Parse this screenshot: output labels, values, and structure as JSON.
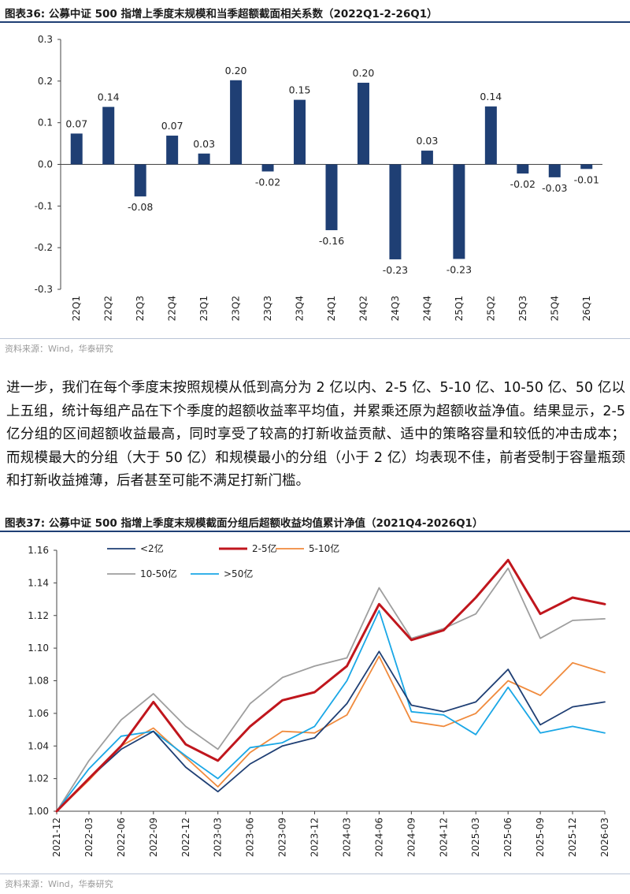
{
  "figure1": {
    "title": "图表36:  公募中证 500 指增上季度末规模和当季超额截面相关系数（2022Q1-2-26Q1）",
    "source": "资料来源：Wind，华泰研究"
  },
  "paragraph": "进一步，我们在每个季度末按照规模从低到高分为 2 亿以内、2-5 亿、5-10 亿、10-50 亿、50 亿以上五组，统计每组产品在下个季度的超额收益率平均值，并累乘还原为超额收益净值。结果显示，2-5 亿分组的区间超额收益最高，同时享受了较高的打新收益贡献、适中的策略容量和较低的冲击成本；而规模最大的分组（大于 50 亿）和规模最小的分组（小于 2 亿）均表现不佳，前者受制于容量瓶颈和打新收益摊薄，后者甚至可能不满足打新门槛。",
  "figure2": {
    "title": "图表37:  公募中证 500 指增上季度末规模截面分组后超额收益均值累计净值（2021Q4-2026Q1）",
    "source": "资料来源：Wind，华泰研究"
  },
  "chart_data": [
    {
      "type": "bar",
      "categories": [
        "22Q1",
        "22Q2",
        "22Q3",
        "22Q4",
        "23Q1",
        "23Q2",
        "23Q3",
        "23Q4",
        "24Q1",
        "24Q2",
        "24Q3",
        "24Q4",
        "25Q1",
        "25Q2",
        "25Q3",
        "25Q4",
        "26Q1"
      ],
      "values": [
        0.074,
        0.138,
        -0.077,
        0.069,
        0.026,
        0.202,
        -0.017,
        0.155,
        -0.158,
        0.196,
        -0.228,
        0.033,
        -0.227,
        0.139,
        -0.022,
        -0.031,
        -0.011
      ],
      "data_labels": [
        "0.07",
        "0.14",
        "-0.08",
        "0.07",
        "0.03",
        "0.20",
        "-0.02",
        "0.15",
        "-0.16",
        "0.20",
        "-0.23",
        "0.03",
        "-0.23",
        "0.14",
        "-0.02",
        "-0.03",
        "-0.01"
      ],
      "ylim": [
        -0.3,
        0.3
      ],
      "yticks": [
        "0.3",
        "0.2",
        "0.1",
        "0.0",
        "-0.1",
        "-0.2",
        "-0.3"
      ],
      "title": "",
      "xlabel": "",
      "ylabel": "",
      "color": "#1f3f74",
      "grid": false
    },
    {
      "type": "line",
      "x": [
        "2021-12",
        "2022-03",
        "2022-06",
        "2022-09",
        "2022-12",
        "2023-03",
        "2023-06",
        "2023-09",
        "2023-12",
        "2024-03",
        "2024-06",
        "2024-09",
        "2024-12",
        "2025-03",
        "2025-06",
        "2025-09",
        "2025-12",
        "2026-03"
      ],
      "series": [
        {
          "name": "<2亿",
          "color": "#1f3f74",
          "width": 1.8,
          "values": [
            1.0,
            1.02,
            1.038,
            1.049,
            1.027,
            1.012,
            1.029,
            1.04,
            1.045,
            1.066,
            1.098,
            1.065,
            1.061,
            1.067,
            1.087,
            1.053,
            1.064,
            1.067
          ]
        },
        {
          "name": "2-5亿",
          "color": "#c0161d",
          "width": 3.0,
          "values": [
            1.0,
            1.02,
            1.04,
            1.067,
            1.041,
            1.031,
            1.052,
            1.068,
            1.073,
            1.089,
            1.127,
            1.105,
            1.111,
            1.131,
            1.154,
            1.121,
            1.131,
            1.127
          ]
        },
        {
          "name": "5-10亿",
          "color": "#f08a3c",
          "width": 1.8,
          "values": [
            1.0,
            1.019,
            1.04,
            1.051,
            1.033,
            1.015,
            1.036,
            1.049,
            1.048,
            1.059,
            1.095,
            1.055,
            1.052,
            1.06,
            1.08,
            1.071,
            1.091,
            1.085
          ]
        },
        {
          "name": "10-50亿",
          "color": "#9e9e9e",
          "width": 1.8,
          "values": [
            1.0,
            1.031,
            1.056,
            1.072,
            1.052,
            1.038,
            1.066,
            1.082,
            1.089,
            1.094,
            1.137,
            1.106,
            1.112,
            1.121,
            1.149,
            1.106,
            1.117,
            1.118
          ]
        },
        {
          "name": ">50亿",
          "color": "#1aa7e6",
          "width": 1.8,
          "values": [
            1.0,
            1.026,
            1.046,
            1.049,
            1.034,
            1.02,
            1.039,
            1.042,
            1.052,
            1.08,
            1.123,
            1.061,
            1.059,
            1.047,
            1.076,
            1.048,
            1.052,
            1.048
          ]
        }
      ],
      "ylim": [
        1.0,
        1.16
      ],
      "yticks": [
        "1.16",
        "1.14",
        "1.12",
        "1.10",
        "1.08",
        "1.06",
        "1.04",
        "1.02",
        "1.00"
      ],
      "legend_placement": "top",
      "title": "",
      "xlabel": "",
      "ylabel": "",
      "grid": false
    }
  ]
}
